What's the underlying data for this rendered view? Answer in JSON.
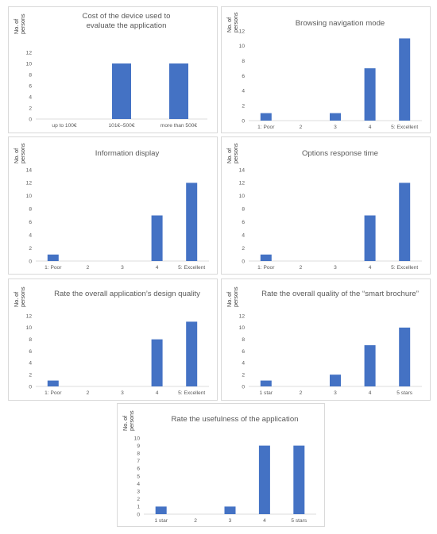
{
  "bar_color": "#4472C4",
  "chart_data": [
    {
      "type": "bar",
      "title": "Cost of the device used to evaluate the application",
      "ylabel": "No. of persons",
      "categories": [
        "up to 100€",
        "101€–500€",
        "more than 500€"
      ],
      "values": [
        0,
        10,
        10
      ],
      "ylim": [
        0,
        12
      ],
      "yticks": [
        0,
        2,
        4,
        6,
        8,
        10,
        12
      ],
      "grid": false,
      "legend": "none"
    },
    {
      "type": "bar",
      "title": "Browsing navigation mode",
      "ylabel": "No. of persons",
      "categories": [
        "1: Poor",
        "2",
        "3",
        "4",
        "5: Excellent"
      ],
      "values": [
        1,
        0,
        1,
        7,
        11
      ],
      "ylim": [
        0,
        12
      ],
      "yticks": [
        0,
        2,
        4,
        6,
        8,
        10,
        12
      ],
      "grid": false,
      "legend": "none"
    },
    {
      "type": "bar",
      "title": "Information display",
      "ylabel": "No. of persons",
      "categories": [
        "1: Poor",
        "2",
        "3",
        "4",
        "5: Excellent"
      ],
      "values": [
        1,
        0,
        0,
        7,
        12
      ],
      "ylim": [
        0,
        14
      ],
      "yticks": [
        0,
        2,
        4,
        6,
        8,
        10,
        12,
        14
      ],
      "grid": false,
      "legend": "none"
    },
    {
      "type": "bar",
      "title": "Options response time",
      "ylabel": "No. of persons",
      "categories": [
        "1: Poor",
        "2",
        "3",
        "4",
        "5: Excellent"
      ],
      "values": [
        1,
        0,
        0,
        7,
        12
      ],
      "ylim": [
        0,
        14
      ],
      "yticks": [
        0,
        2,
        4,
        6,
        8,
        10,
        12,
        14
      ],
      "grid": false,
      "legend": "none"
    },
    {
      "type": "bar",
      "title": "Rate the overall application’s design quality",
      "ylabel": "No. of persons",
      "categories": [
        "1: Poor",
        "2",
        "3",
        "4",
        "5: Excellent"
      ],
      "values": [
        1,
        0,
        0,
        8,
        11
      ],
      "ylim": [
        0,
        12
      ],
      "yticks": [
        0,
        2,
        4,
        6,
        8,
        10,
        12
      ],
      "grid": false,
      "legend": "none"
    },
    {
      "type": "bar",
      "title": "Rate the overall quality of the “smart brochure”",
      "ylabel": "No. of persons",
      "categories": [
        "1 star",
        "2",
        "3",
        "4",
        "5 stars"
      ],
      "values": [
        1,
        0,
        2,
        7,
        10
      ],
      "ylim": [
        0,
        12
      ],
      "yticks": [
        0,
        2,
        4,
        6,
        8,
        10,
        12
      ],
      "grid": false,
      "legend": "none"
    },
    {
      "type": "bar",
      "title": "Rate the usefulness of the application",
      "ylabel": "No. of persons",
      "categories": [
        "1 star",
        "2",
        "3",
        "4",
        "5 stars"
      ],
      "values": [
        1,
        0,
        1,
        9,
        9
      ],
      "ylim": [
        0,
        10
      ],
      "yticks": [
        0,
        1,
        2,
        3,
        4,
        5,
        6,
        7,
        8,
        9,
        10
      ],
      "grid": false,
      "legend": "none"
    }
  ]
}
